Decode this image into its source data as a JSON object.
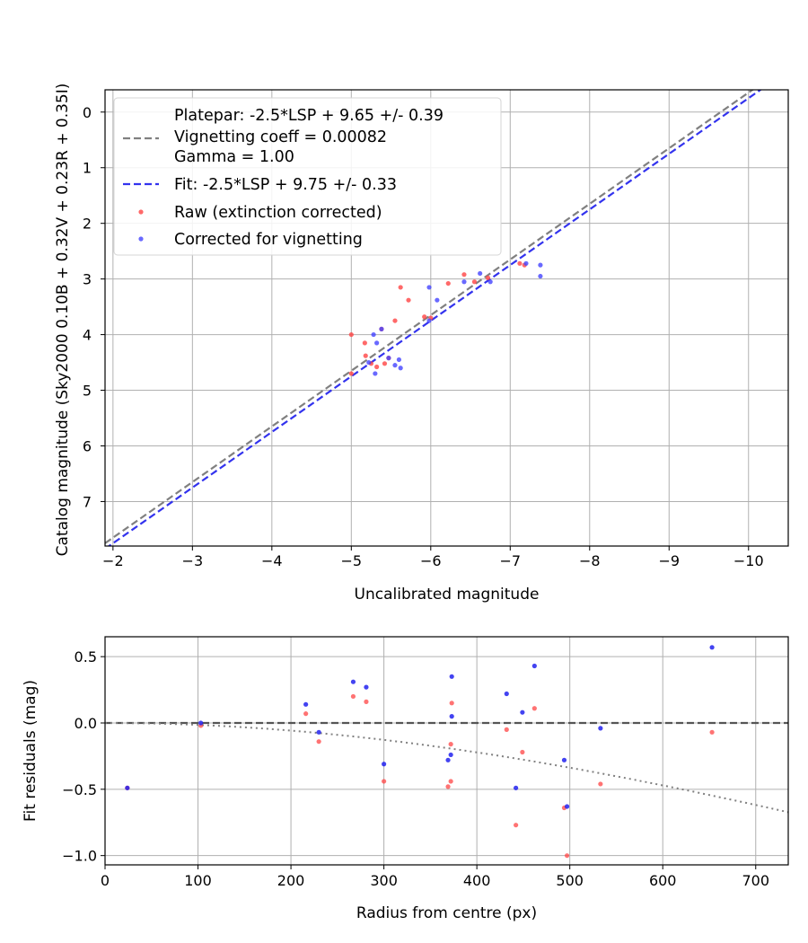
{
  "chart_data": [
    {
      "type": "scatter",
      "xlabel": "Uncalibrated magnitude",
      "ylabel": "Catalog magnitude (Sky2000 0.10B + 0.32V + 0.23R + 0.35I)",
      "xlim": [
        -1.9,
        -10.5
      ],
      "ylim": [
        7.8,
        -0.4
      ],
      "x_inverted": true,
      "y_inverted": true,
      "xticks": [
        -2,
        -3,
        -4,
        -5,
        -6,
        -7,
        -8,
        -9,
        -10
      ],
      "xtick_labels": [
        "−2",
        "−3",
        "−4",
        "−5",
        "−6",
        "−7",
        "−8",
        "−9",
        "−10"
      ],
      "yticks": [
        0,
        1,
        2,
        3,
        4,
        5,
        6,
        7
      ],
      "ytick_labels": [
        "0",
        "1",
        "2",
        "3",
        "4",
        "5",
        "6",
        "7"
      ],
      "grid": true,
      "legend_position": "upper-left",
      "legend": [
        "Platepar: -2.5*LSP + 9.65 +/- 0.39",
        "Vignetting coeff = 0.00082",
        "Gamma = 1.00",
        "Fit: -2.5*LSP + 9.75 +/- 0.33",
        "Raw (extinction corrected)",
        "Corrected for vignetting"
      ],
      "lines": [
        {
          "name": "Platepar",
          "color": "#808080",
          "style": "dashed",
          "intercept": 9.65
        },
        {
          "name": "Fit",
          "color": "#3333ee",
          "style": "dashed",
          "intercept": 9.75
        }
      ],
      "series": [
        {
          "name": "Raw (extinction corrected)",
          "color": "#ff4444",
          "points": [
            [
              -5.0,
              4.0
            ],
            [
              -5.0,
              4.7
            ],
            [
              -5.17,
              4.15
            ],
            [
              -5.18,
              4.38
            ],
            [
              -5.25,
              4.52
            ],
            [
              -5.32,
              4.58
            ],
            [
              -5.38,
              3.9
            ],
            [
              -5.42,
              4.52
            ],
            [
              -5.47,
              4.42
            ],
            [
              -5.55,
              3.75
            ],
            [
              -5.62,
              3.15
            ],
            [
              -5.72,
              3.38
            ],
            [
              -5.92,
              3.68
            ],
            [
              -6.0,
              3.7
            ],
            [
              -6.22,
              3.08
            ],
            [
              -6.42,
              2.92
            ],
            [
              -6.55,
              3.05
            ],
            [
              -6.72,
              2.98
            ],
            [
              -7.12,
              2.72
            ],
            [
              -7.18,
              2.75
            ]
          ]
        },
        {
          "name": "Corrected for vignetting",
          "color": "#4444ff",
          "points": [
            [
              -5.22,
              4.5
            ],
            [
              -5.28,
              4.0
            ],
            [
              -5.3,
              4.7
            ],
            [
              -5.32,
              4.15
            ],
            [
              -5.38,
              3.9
            ],
            [
              -5.47,
              4.42
            ],
            [
              -5.55,
              4.55
            ],
            [
              -5.62,
              4.6
            ],
            [
              -5.6,
              4.45
            ],
            [
              -5.98,
              3.15
            ],
            [
              -5.98,
              3.75
            ],
            [
              -6.08,
              3.38
            ],
            [
              -6.42,
              3.05
            ],
            [
              -6.62,
              2.9
            ],
            [
              -6.75,
              3.05
            ],
            [
              -7.2,
              2.72
            ],
            [
              -7.38,
              2.75
            ],
            [
              -7.38,
              2.95
            ]
          ]
        }
      ]
    },
    {
      "type": "scatter",
      "xlabel": "Radius from centre (px)",
      "ylabel": "Fit residuals (mag)",
      "xlim": [
        0,
        735
      ],
      "ylim": [
        -1.07,
        0.65
      ],
      "xticks": [
        0,
        100,
        200,
        300,
        400,
        500,
        600,
        700
      ],
      "xtick_labels": [
        "0",
        "100",
        "200",
        "300",
        "400",
        "500",
        "600",
        "700"
      ],
      "yticks": [
        0.5,
        0.0,
        -0.5,
        -1.0
      ],
      "ytick_labels": [
        "0.5",
        "0.0",
        "−0.5",
        "−1.0"
      ],
      "grid": true,
      "reference_line": {
        "y": 0.0,
        "color": "#555555",
        "style": "dashed"
      },
      "vignetting_curve": {
        "coeff": 0.00082,
        "color": "#808080",
        "style": "dotted"
      },
      "series": [
        {
          "name": "Raw",
          "color": "#ff4444",
          "points": [
            [
              24,
              -0.49
            ],
            [
              103,
              -0.02
            ],
            [
              216,
              0.07
            ],
            [
              230,
              -0.14
            ],
            [
              267,
              0.2
            ],
            [
              281,
              0.16
            ],
            [
              300,
              -0.44
            ],
            [
              369,
              -0.48
            ],
            [
              372,
              -0.16
            ],
            [
              372,
              -0.44
            ],
            [
              373,
              0.15
            ],
            [
              432,
              -0.05
            ],
            [
              442,
              -0.77
            ],
            [
              449,
              -0.22
            ],
            [
              462,
              0.11
            ],
            [
              494,
              -0.64
            ],
            [
              497,
              -1.0
            ],
            [
              533,
              -0.46
            ],
            [
              653,
              -0.07
            ]
          ]
        },
        {
          "name": "Corrected",
          "color": "#2222ee",
          "points": [
            [
              24,
              -0.49
            ],
            [
              103,
              0.0
            ],
            [
              216,
              0.14
            ],
            [
              230,
              -0.07
            ],
            [
              267,
              0.31
            ],
            [
              281,
              0.27
            ],
            [
              300,
              -0.31
            ],
            [
              369,
              -0.28
            ],
            [
              372,
              -0.24
            ],
            [
              373,
              0.35
            ],
            [
              373,
              0.05
            ],
            [
              432,
              0.22
            ],
            [
              442,
              -0.49
            ],
            [
              449,
              0.08
            ],
            [
              462,
              0.43
            ],
            [
              494,
              -0.28
            ],
            [
              497,
              -0.63
            ],
            [
              533,
              -0.04
            ],
            [
              653,
              0.57
            ]
          ]
        }
      ]
    }
  ]
}
